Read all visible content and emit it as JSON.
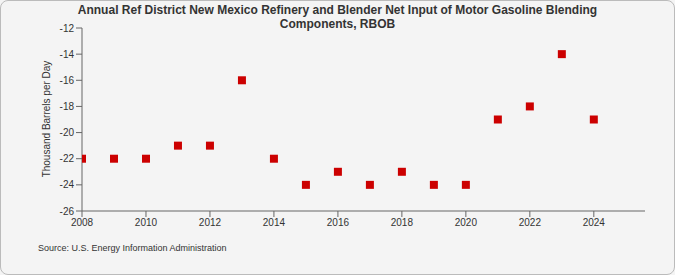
{
  "chart_data": {
    "type": "scatter",
    "title": "Annual Ref District New Mexico Refinery and Blender Net Input of Motor Gasoline Blending Components, RBOB",
    "y_label": "Thousand Barrels per Day",
    "source": "Source: U.S. Energy Information Administration",
    "x": [
      2008,
      2009,
      2010,
      2011,
      2012,
      2013,
      2014,
      2015,
      2016,
      2017,
      2018,
      2019,
      2020,
      2021,
      2022,
      2023,
      2024
    ],
    "values": [
      -22,
      -22,
      -22,
      -21,
      -21,
      -16,
      -22,
      -24,
      -23,
      -24,
      -23,
      -24,
      -24,
      -19,
      -18,
      -14,
      -19
    ],
    "color": "#cc0000",
    "marker": "square",
    "xlim": [
      2008,
      2025.6
    ],
    "xticks": [
      2008,
      2010,
      2012,
      2014,
      2016,
      2018,
      2020,
      2022,
      2024
    ],
    "ylim": [
      -26,
      -12
    ],
    "yticks": [
      -26,
      -24,
      -22,
      -20,
      -18,
      -16,
      -14,
      -12
    ],
    "grid": false
  }
}
